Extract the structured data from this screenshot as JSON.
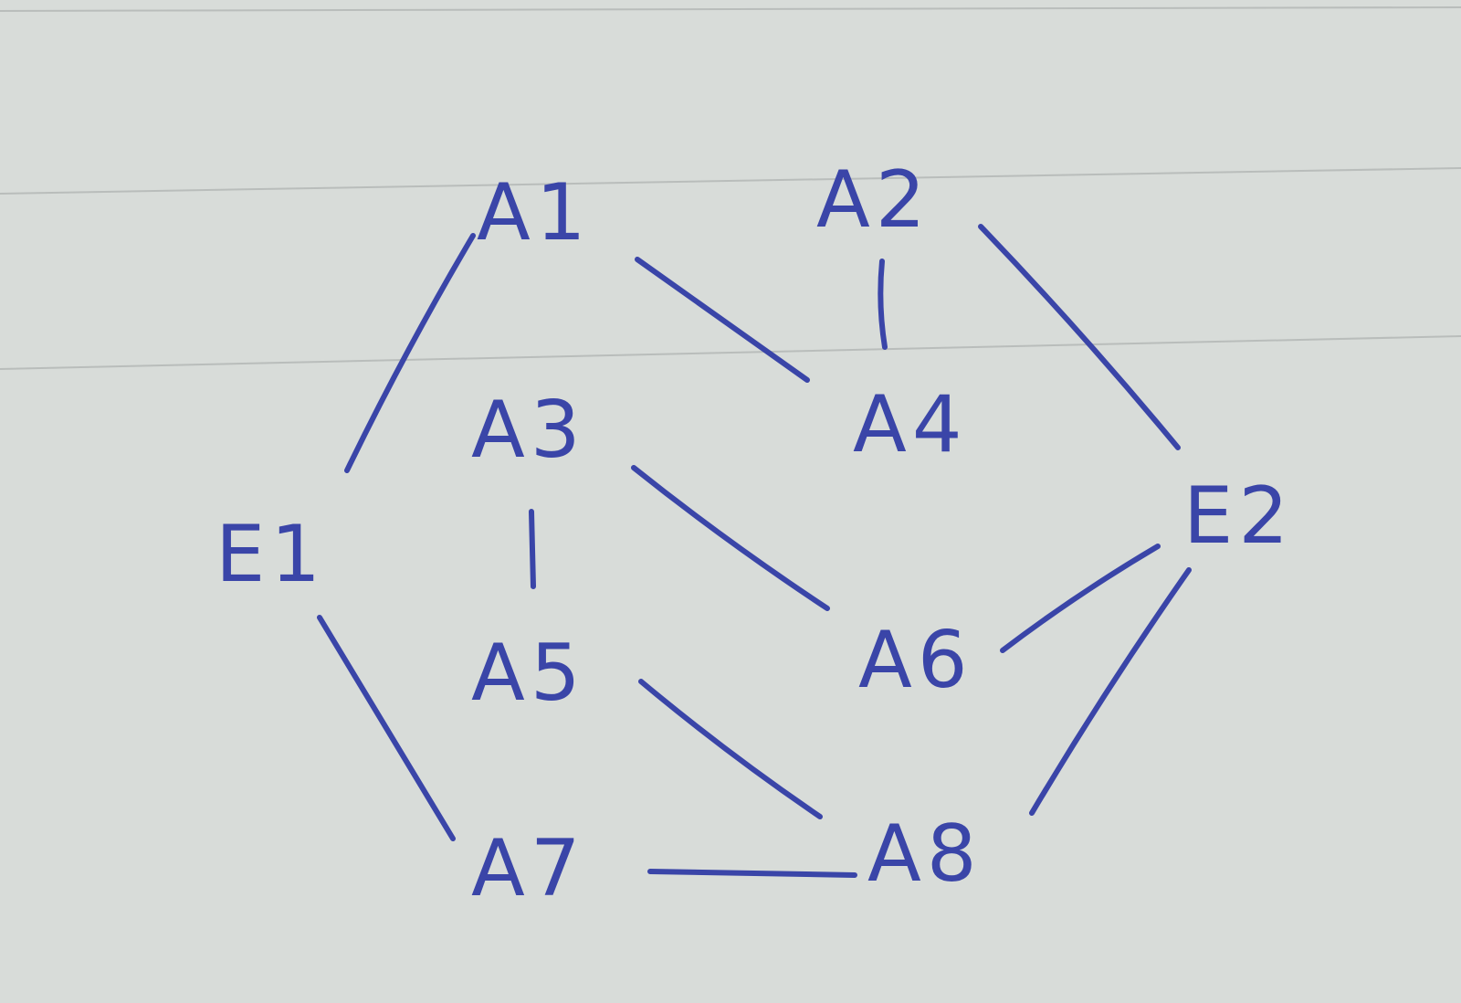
{
  "diagram": {
    "type": "undirected-graph",
    "ink_color": "#3a45a8",
    "paper_color": "#d6dad7",
    "nodes": [
      {
        "id": "A1",
        "label": "A1"
      },
      {
        "id": "A2",
        "label": "A2"
      },
      {
        "id": "A3",
        "label": "A3"
      },
      {
        "id": "A4",
        "label": "A4"
      },
      {
        "id": "E1",
        "label": "E1"
      },
      {
        "id": "E2",
        "label": "E2"
      },
      {
        "id": "A5",
        "label": "A5"
      },
      {
        "id": "A6",
        "label": "A6"
      },
      {
        "id": "A7",
        "label": "A7"
      },
      {
        "id": "A8",
        "label": "A8"
      }
    ],
    "edges": [
      {
        "from": "E1",
        "to": "A1"
      },
      {
        "from": "A1",
        "to": "A4"
      },
      {
        "from": "A2",
        "to": "A4"
      },
      {
        "from": "A2",
        "to": "E2"
      },
      {
        "from": "A3",
        "to": "A5"
      },
      {
        "from": "A3",
        "to": "A6"
      },
      {
        "from": "E2",
        "to": "A6"
      },
      {
        "from": "E1",
        "to": "A7"
      },
      {
        "from": "A5",
        "to": "A8"
      },
      {
        "from": "E2",
        "to": "A8"
      },
      {
        "from": "A7",
        "to": "A8"
      }
    ]
  }
}
